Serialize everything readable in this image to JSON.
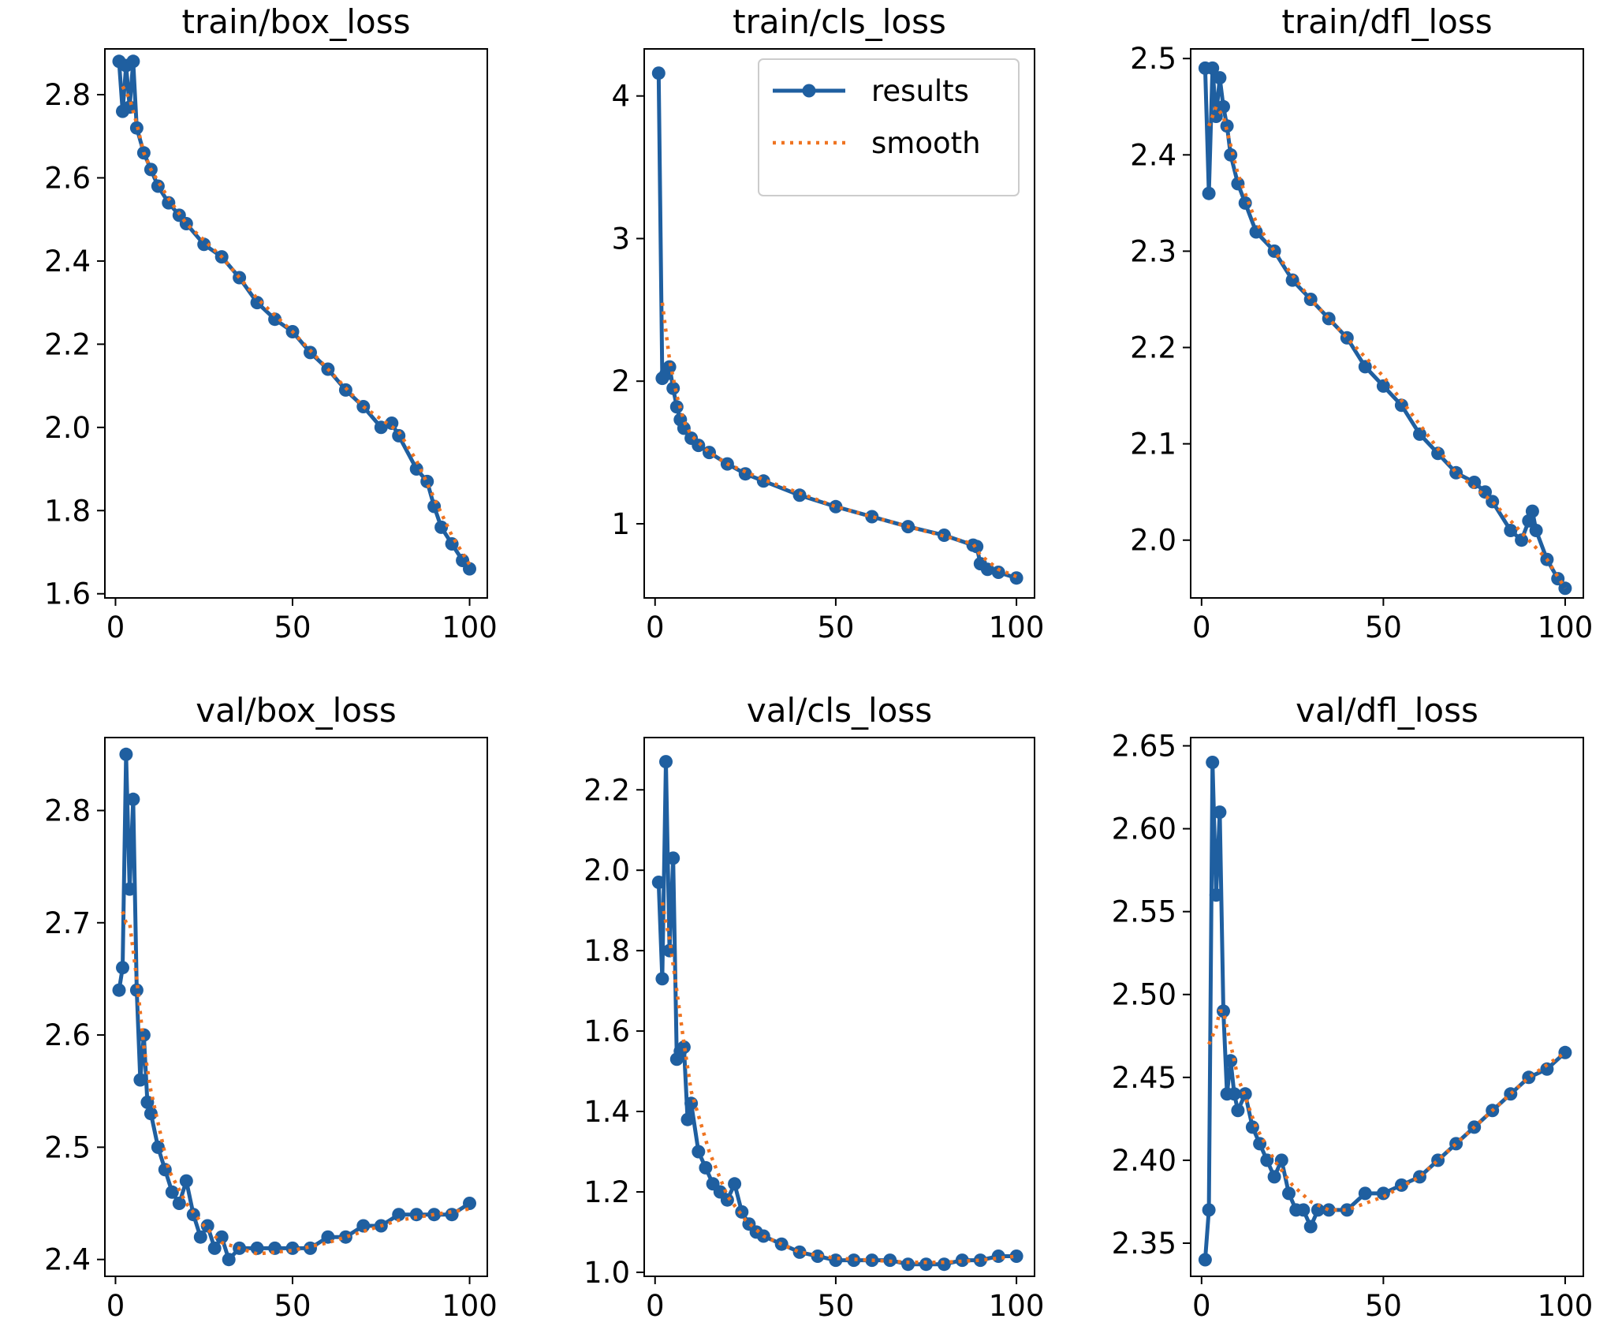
{
  "figure": {
    "background": "#ffffff"
  },
  "legend": {
    "entries": [
      {
        "label": "results",
        "color": "#1f5fa0",
        "style": "solid-with-markers"
      },
      {
        "label": "smooth",
        "color": "#ef7421",
        "style": "dotted"
      }
    ],
    "placement": "top-right of train/cls_loss"
  },
  "chart_data": [
    {
      "type": "line",
      "title": "train/box_loss",
      "xlabel": "",
      "ylabel": "",
      "xlim": [
        -3,
        105
      ],
      "ylim": [
        1.59,
        2.91
      ],
      "grid": false,
      "xticks": [
        0,
        50,
        100
      ],
      "xtick_labels": [
        "0",
        "50",
        "100"
      ],
      "yticks": [
        1.6,
        1.8,
        2.0,
        2.2,
        2.4,
        2.6,
        2.8
      ],
      "ytick_labels": [
        "1.6",
        "1.8",
        "2.0",
        "2.2",
        "2.4",
        "2.6",
        "2.8"
      ],
      "series": [
        {
          "name": "results",
          "x": [
            1,
            2,
            3,
            4,
            5,
            6,
            8,
            10,
            12,
            15,
            18,
            20,
            25,
            30,
            35,
            40,
            45,
            50,
            55,
            60,
            65,
            70,
            75,
            78,
            80,
            85,
            88,
            90,
            92,
            95,
            98,
            100
          ],
          "values": [
            2.88,
            2.76,
            2.87,
            2.77,
            2.88,
            2.72,
            2.66,
            2.62,
            2.58,
            2.54,
            2.51,
            2.49,
            2.44,
            2.41,
            2.36,
            2.3,
            2.26,
            2.23,
            2.18,
            2.14,
            2.09,
            2.05,
            2.0,
            2.01,
            1.98,
            1.9,
            1.87,
            1.81,
            1.76,
            1.72,
            1.68,
            1.66
          ]
        },
        {
          "name": "smooth",
          "x": [
            2,
            4,
            6,
            8,
            10,
            15,
            20,
            30,
            40,
            50,
            60,
            70,
            80,
            85,
            90,
            95,
            100
          ],
          "values": [
            2.82,
            2.79,
            2.73,
            2.66,
            2.62,
            2.55,
            2.49,
            2.41,
            2.31,
            2.23,
            2.14,
            2.05,
            1.99,
            1.92,
            1.83,
            1.74,
            1.67
          ]
        }
      ]
    },
    {
      "type": "line",
      "title": "train/cls_loss",
      "xlabel": "",
      "ylabel": "",
      "xlim": [
        -3,
        105
      ],
      "ylim": [
        0.48,
        4.33
      ],
      "grid": false,
      "xticks": [
        0,
        50,
        100
      ],
      "xtick_labels": [
        "0",
        "50",
        "100"
      ],
      "yticks": [
        1,
        2,
        3,
        4
      ],
      "ytick_labels": [
        "1",
        "2",
        "3",
        "4"
      ],
      "series": [
        {
          "name": "results",
          "x": [
            1,
            2,
            3,
            4,
            5,
            6,
            7,
            8,
            10,
            12,
            15,
            20,
            25,
            30,
            40,
            50,
            60,
            70,
            80,
            88,
            89,
            90,
            92,
            95,
            100
          ],
          "values": [
            4.16,
            2.02,
            2.05,
            2.1,
            1.95,
            1.82,
            1.73,
            1.67,
            1.6,
            1.55,
            1.5,
            1.42,
            1.35,
            1.3,
            1.2,
            1.12,
            1.05,
            0.98,
            0.92,
            0.85,
            0.84,
            0.72,
            0.68,
            0.66,
            0.62
          ]
        },
        {
          "name": "smooth",
          "x": [
            2,
            3,
            4,
            6,
            8,
            10,
            15,
            20,
            30,
            50,
            70,
            88,
            90,
            95,
            100
          ],
          "values": [
            2.55,
            2.35,
            2.15,
            1.9,
            1.72,
            1.62,
            1.5,
            1.42,
            1.31,
            1.12,
            0.98,
            0.86,
            0.78,
            0.68,
            0.63
          ]
        }
      ]
    },
    {
      "type": "line",
      "title": "train/dfl_loss",
      "xlabel": "",
      "ylabel": "",
      "xlim": [
        -3,
        105
      ],
      "ylim": [
        1.94,
        2.51
      ],
      "grid": false,
      "xticks": [
        0,
        50,
        100
      ],
      "xtick_labels": [
        "0",
        "50",
        "100"
      ],
      "yticks": [
        2.0,
        2.1,
        2.2,
        2.3,
        2.4,
        2.5
      ],
      "ytick_labels": [
        "2.0",
        "2.1",
        "2.2",
        "2.3",
        "2.4",
        "2.5"
      ],
      "series": [
        {
          "name": "results",
          "x": [
            1,
            2,
            3,
            4,
            5,
            6,
            7,
            8,
            10,
            12,
            15,
            20,
            25,
            30,
            35,
            40,
            45,
            50,
            55,
            60,
            65,
            70,
            75,
            78,
            80,
            85,
            88,
            90,
            91,
            92,
            95,
            98,
            100
          ],
          "values": [
            2.49,
            2.36,
            2.49,
            2.44,
            2.48,
            2.45,
            2.43,
            2.4,
            2.37,
            2.35,
            2.32,
            2.3,
            2.27,
            2.25,
            2.23,
            2.21,
            2.18,
            2.16,
            2.14,
            2.11,
            2.09,
            2.07,
            2.06,
            2.05,
            2.04,
            2.01,
            2.0,
            2.02,
            2.03,
            2.01,
            1.98,
            1.96,
            1.95
          ]
        },
        {
          "name": "smooth",
          "x": [
            2,
            4,
            6,
            8,
            10,
            15,
            20,
            30,
            40,
            50,
            60,
            70,
            80,
            85,
            90,
            95,
            100
          ],
          "values": [
            2.43,
            2.45,
            2.44,
            2.41,
            2.38,
            2.33,
            2.3,
            2.25,
            2.21,
            2.17,
            2.12,
            2.07,
            2.04,
            2.02,
            2.0,
            1.98,
            1.95
          ]
        }
      ]
    },
    {
      "type": "line",
      "title": "val/box_loss",
      "xlabel": "",
      "ylabel": "",
      "xlim": [
        -3,
        105
      ],
      "ylim": [
        2.385,
        2.865
      ],
      "grid": false,
      "xticks": [
        0,
        50,
        100
      ],
      "xtick_labels": [
        "0",
        "50",
        "100"
      ],
      "yticks": [
        2.4,
        2.5,
        2.6,
        2.7,
        2.8
      ],
      "ytick_labels": [
        "2.4",
        "2.5",
        "2.6",
        "2.7",
        "2.8"
      ],
      "series": [
        {
          "name": "results",
          "x": [
            1,
            2,
            3,
            4,
            5,
            6,
            7,
            8,
            9,
            10,
            12,
            14,
            16,
            18,
            20,
            22,
            24,
            26,
            28,
            30,
            32,
            35,
            40,
            45,
            50,
            55,
            60,
            65,
            70,
            75,
            80,
            85,
            90,
            95,
            100
          ],
          "values": [
            2.64,
            2.66,
            2.85,
            2.73,
            2.81,
            2.64,
            2.56,
            2.6,
            2.54,
            2.53,
            2.5,
            2.48,
            2.46,
            2.45,
            2.47,
            2.44,
            2.42,
            2.43,
            2.41,
            2.42,
            2.4,
            2.41,
            2.41,
            2.41,
            2.41,
            2.41,
            2.42,
            2.42,
            2.43,
            2.43,
            2.44,
            2.44,
            2.44,
            2.44,
            2.45
          ]
        },
        {
          "name": "smooth",
          "x": [
            2,
            3,
            4,
            6,
            8,
            10,
            15,
            20,
            25,
            30,
            35,
            40,
            50,
            60,
            70,
            80,
            90,
            100
          ],
          "values": [
            2.71,
            2.7,
            2.7,
            2.65,
            2.59,
            2.55,
            2.48,
            2.45,
            2.43,
            2.415,
            2.41,
            2.405,
            2.408,
            2.415,
            2.425,
            2.435,
            2.44,
            2.445
          ]
        }
      ]
    },
    {
      "type": "line",
      "title": "val/cls_loss",
      "xlabel": "",
      "ylabel": "",
      "xlim": [
        -3,
        105
      ],
      "ylim": [
        0.99,
        2.33
      ],
      "grid": false,
      "xticks": [
        0,
        50,
        100
      ],
      "xtick_labels": [
        "0",
        "50",
        "100"
      ],
      "yticks": [
        1.0,
        1.2,
        1.4,
        1.6,
        1.8,
        2.0,
        2.2
      ],
      "ytick_labels": [
        "1.0",
        "1.2",
        "1.4",
        "1.6",
        "1.8",
        "2.0",
        "2.2"
      ],
      "series": [
        {
          "name": "results",
          "x": [
            1,
            2,
            3,
            4,
            5,
            6,
            7,
            8,
            9,
            10,
            12,
            14,
            16,
            18,
            20,
            22,
            24,
            26,
            28,
            30,
            35,
            40,
            45,
            50,
            55,
            60,
            65,
            70,
            75,
            80,
            85,
            90,
            95,
            100
          ],
          "values": [
            1.97,
            1.73,
            2.27,
            1.8,
            2.03,
            1.53,
            1.55,
            1.56,
            1.38,
            1.42,
            1.3,
            1.26,
            1.22,
            1.2,
            1.18,
            1.22,
            1.15,
            1.12,
            1.1,
            1.09,
            1.07,
            1.05,
            1.04,
            1.03,
            1.03,
            1.03,
            1.03,
            1.02,
            1.02,
            1.02,
            1.03,
            1.03,
            1.04,
            1.04
          ]
        },
        {
          "name": "smooth",
          "x": [
            2,
            3,
            4,
            6,
            8,
            10,
            15,
            20,
            25,
            30,
            40,
            50,
            60,
            70,
            80,
            90,
            100
          ],
          "values": [
            1.92,
            1.87,
            1.83,
            1.7,
            1.57,
            1.45,
            1.3,
            1.19,
            1.13,
            1.09,
            1.05,
            1.035,
            1.03,
            1.025,
            1.025,
            1.03,
            1.04
          ]
        }
      ]
    },
    {
      "type": "line",
      "title": "val/dfl_loss",
      "xlabel": "",
      "ylabel": "",
      "xlim": [
        -3,
        105
      ],
      "ylim": [
        2.33,
        2.655
      ],
      "grid": false,
      "xticks": [
        0,
        50,
        100
      ],
      "xtick_labels": [
        "0",
        "50",
        "100"
      ],
      "yticks": [
        2.35,
        2.4,
        2.45,
        2.5,
        2.55,
        2.6,
        2.65
      ],
      "ytick_labels": [
        "2.35",
        "2.40",
        "2.45",
        "2.50",
        "2.55",
        "2.60",
        "2.65"
      ],
      "series": [
        {
          "name": "results",
          "x": [
            1,
            2,
            3,
            4,
            5,
            6,
            7,
            8,
            9,
            10,
            12,
            14,
            16,
            18,
            20,
            22,
            24,
            26,
            28,
            30,
            32,
            35,
            40,
            45,
            50,
            55,
            60,
            65,
            70,
            75,
            80,
            85,
            90,
            95,
            100
          ],
          "values": [
            2.34,
            2.37,
            2.64,
            2.56,
            2.61,
            2.49,
            2.44,
            2.46,
            2.44,
            2.43,
            2.44,
            2.42,
            2.41,
            2.4,
            2.39,
            2.4,
            2.38,
            2.37,
            2.37,
            2.36,
            2.37,
            2.37,
            2.37,
            2.38,
            2.38,
            2.385,
            2.39,
            2.4,
            2.41,
            2.42,
            2.43,
            2.44,
            2.45,
            2.455,
            2.465
          ]
        },
        {
          "name": "smooth",
          "x": [
            2,
            3,
            4,
            5,
            6,
            8,
            10,
            15,
            20,
            25,
            30,
            35,
            40,
            50,
            60,
            70,
            80,
            90,
            100
          ],
          "values": [
            2.47,
            2.475,
            2.48,
            2.49,
            2.49,
            2.47,
            2.45,
            2.42,
            2.4,
            2.385,
            2.375,
            2.37,
            2.37,
            2.378,
            2.39,
            2.41,
            2.43,
            2.45,
            2.465
          ]
        }
      ]
    }
  ]
}
